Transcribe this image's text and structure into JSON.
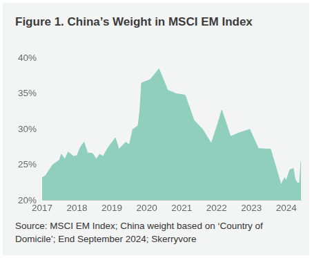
{
  "chart_data": {
    "type": "area",
    "title": "Figure 1. China’s Weight in MSCI EM Index",
    "source": "Source: MSCI EM Index; China weight based on ‘Country of Domicile’; End September 2024; Skerryvore",
    "x": [
      2017.0,
      2017.1,
      2017.3,
      2017.5,
      2017.55,
      2017.65,
      2017.75,
      2017.9,
      2018.0,
      2018.1,
      2018.2,
      2018.3,
      2018.45,
      2018.55,
      2018.65,
      2018.75,
      2018.9,
      2019.1,
      2019.2,
      2019.4,
      2019.5,
      2019.6,
      2019.75,
      2019.8,
      2019.85,
      2020.1,
      2020.35,
      2020.6,
      2020.85,
      2021.1,
      2021.35,
      2021.6,
      2021.85,
      2022.05,
      2022.15,
      2022.4,
      2022.65,
      2022.95,
      2023.2,
      2023.55,
      2023.85,
      2023.95,
      2024.0,
      2024.1,
      2024.2,
      2024.25,
      2024.32,
      2024.38,
      2024.42
    ],
    "values": [
      23.2,
      23.5,
      25,
      25.7,
      26.5,
      25.8,
      26.8,
      26.2,
      26.3,
      27.5,
      28.2,
      26.7,
      26.6,
      25.8,
      26.5,
      26.2,
      27.5,
      28.8,
      27.2,
      28.2,
      27.8,
      30,
      30.5,
      32.5,
      36.5,
      37,
      38.5,
      35.5,
      35,
      34.8,
      31.3,
      30,
      28,
      31,
      32.7,
      29,
      29.5,
      30,
      27.3,
      27.2,
      22.2,
      23.2,
      22.8,
      24.3,
      24.5,
      23,
      22.4,
      22.5,
      25.5
    ],
    "color": "#8fcfbb",
    "xlim": [
      2017,
      2024.42
    ],
    "xticks": [
      2017,
      2018,
      2019,
      2020,
      2021,
      2022,
      2023,
      2024
    ],
    "ylim": [
      20,
      40
    ],
    "yticks": [
      {
        "value": 20,
        "label": "20%"
      },
      {
        "value": 25,
        "label": "25%"
      },
      {
        "value": 30,
        "label": "30%"
      },
      {
        "value": 35,
        "label": "35%"
      },
      {
        "value": 40,
        "label": "40%"
      }
    ],
    "grid": false
  }
}
